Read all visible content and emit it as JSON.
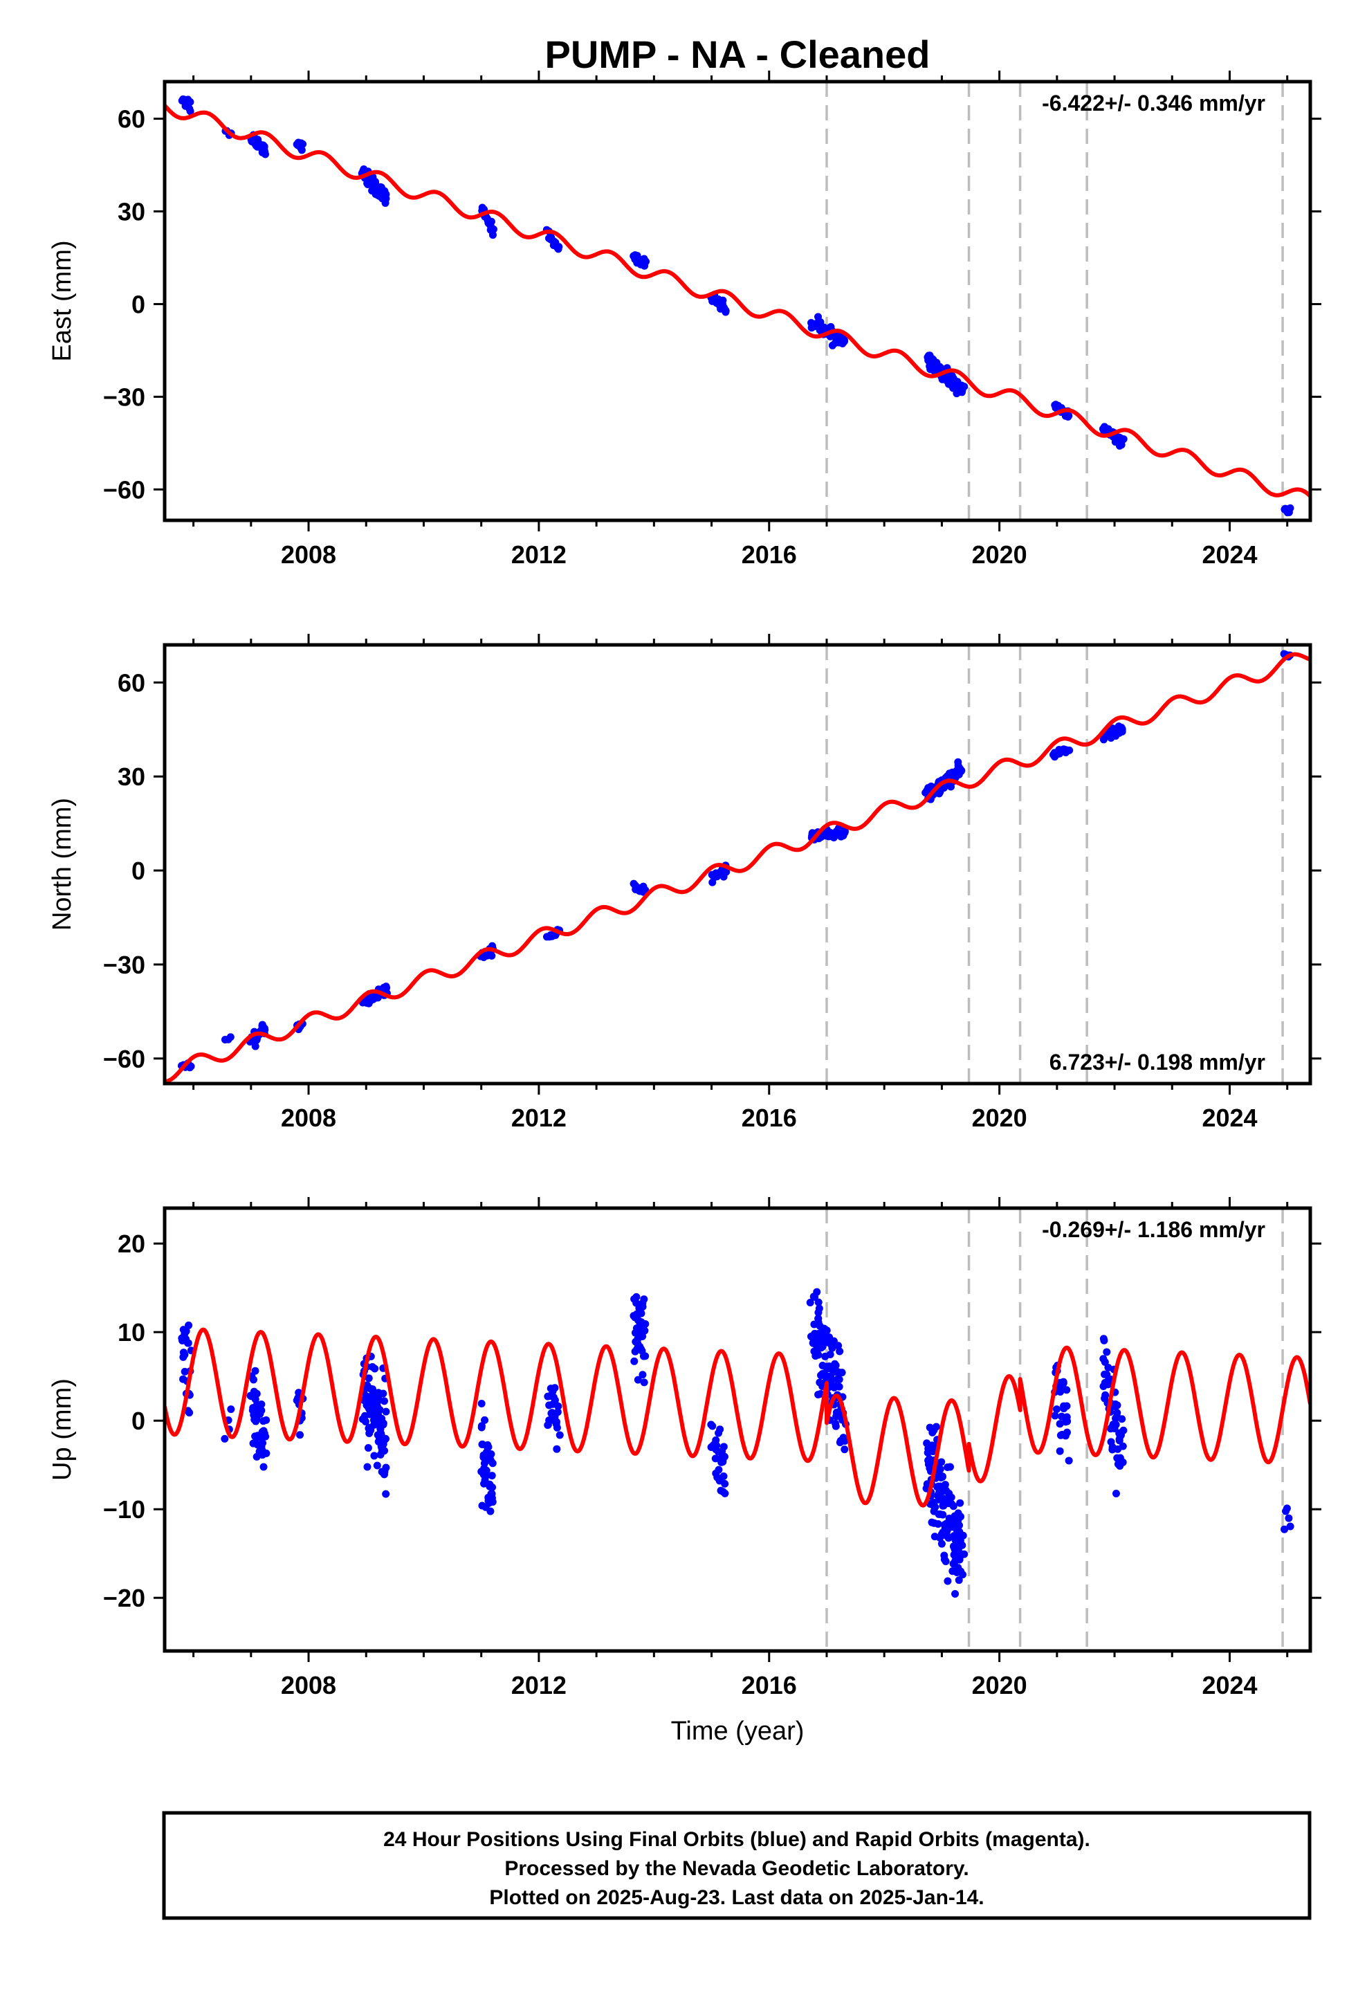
{
  "title": "PUMP  - NA - Cleaned",
  "colors": {
    "final_orbits": "#0000ff",
    "model": "#ff0000",
    "events": "#bdbdbd"
  },
  "footer": {
    "line1": "24 Hour Positions Using Final Orbits (blue) and Rapid Orbits (magenta).",
    "line2": "Processed by the Nevada Geodetic Laboratory.",
    "line3": "Plotted on 2025-Aug-23. Last data on 2025-Jan-14."
  },
  "chart_data": [
    {
      "type": "scatter",
      "name": "east",
      "ylabel": "East (mm)",
      "xlabel": "",
      "xlim": [
        2005.5,
        2025.4
      ],
      "ylim": [
        -70,
        72
      ],
      "xticks": [
        2008,
        2012,
        2016,
        2020,
        2024
      ],
      "yticks": [
        -60,
        -30,
        0,
        30,
        60
      ],
      "yticklabels": [
        "−60",
        "−30",
        "0",
        "30",
        "60"
      ],
      "rate_text": "-6.422+/- 0.346 mm/yr",
      "rate_position": "top-right",
      "event_lines": [
        2017.0,
        2019.47,
        2020.36,
        2021.52,
        2024.92
      ],
      "model": {
        "trend": {
          "slope": -6.422,
          "value_at_2005": 67.5
        },
        "seasonal": [
          {
            "start": 2005.5,
            "end": 2025.4,
            "amplitude": 2.3,
            "period": 1.0,
            "phase": 0.0
          }
        ]
      },
      "clusters": [
        {
          "x_start": 2005.8,
          "x_end": 2005.95,
          "y_start": 67,
          "y_end": 64,
          "spread": 2.5,
          "n": 12
        },
        {
          "x_start": 2006.55,
          "x_end": 2006.65,
          "y_start": 56,
          "y_end": 55,
          "spread": 1.0,
          "n": 4
        },
        {
          "x_start": 2007.0,
          "x_end": 2007.25,
          "y_start": 54,
          "y_end": 50,
          "spread": 2.0,
          "n": 30
        },
        {
          "x_start": 2007.8,
          "x_end": 2007.9,
          "y_start": 52,
          "y_end": 51,
          "spread": 1.2,
          "n": 8
        },
        {
          "x_start": 2008.95,
          "x_end": 2009.35,
          "y_start": 42,
          "y_end": 34,
          "spread": 2.8,
          "n": 60
        },
        {
          "x_start": 2011.0,
          "x_end": 2011.2,
          "y_start": 31,
          "y_end": 24,
          "spread": 2.0,
          "n": 20
        },
        {
          "x_start": 2012.15,
          "x_end": 2012.35,
          "y_start": 23,
          "y_end": 18,
          "spread": 1.5,
          "n": 14
        },
        {
          "x_start": 2013.65,
          "x_end": 2013.85,
          "y_start": 15,
          "y_end": 13,
          "spread": 1.5,
          "n": 18
        },
        {
          "x_start": 2015.0,
          "x_end": 2015.25,
          "y_start": 3,
          "y_end": -2,
          "spread": 2.0,
          "n": 25
        },
        {
          "x_start": 2016.75,
          "x_end": 2017.3,
          "y_start": -6,
          "y_end": -12,
          "spread": 2.0,
          "n": 60
        },
        {
          "x_start": 2018.75,
          "x_end": 2019.35,
          "y_start": -18,
          "y_end": -28,
          "spread": 2.0,
          "n": 90
        },
        {
          "x_start": 2020.95,
          "x_end": 2021.2,
          "y_start": -33,
          "y_end": -36,
          "spread": 1.5,
          "n": 20
        },
        {
          "x_start": 2021.8,
          "x_end": 2022.15,
          "y_start": -40,
          "y_end": -45,
          "spread": 1.5,
          "n": 35
        },
        {
          "x_start": 2024.95,
          "x_end": 2025.05,
          "y_start": -66,
          "y_end": -67,
          "spread": 1.0,
          "n": 5
        }
      ]
    },
    {
      "type": "scatter",
      "name": "north",
      "ylabel": "North (mm)",
      "xlabel": "",
      "xlim": [
        2005.5,
        2025.4
      ],
      "ylim": [
        -68,
        72
      ],
      "xticks": [
        2008,
        2012,
        2016,
        2020,
        2024
      ],
      "yticks": [
        -60,
        -30,
        0,
        30,
        60
      ],
      "yticklabels": [
        "−60",
        "−30",
        "0",
        "30",
        "60"
      ],
      "rate_text": "6.723+/- 0.198 mm/yr",
      "rate_position": "bottom-right",
      "event_lines": [
        2017.0,
        2019.47,
        2020.36,
        2021.52,
        2024.92
      ],
      "model": {
        "trend": {
          "slope": 6.723,
          "value_at_2005": -68.5
        },
        "seasonal": [
          {
            "start": 2005.5,
            "end": 2025.4,
            "amplitude": 2.4,
            "period": 1.0,
            "phase": 1.2
          }
        ]
      },
      "clusters": [
        {
          "x_start": 2005.8,
          "x_end": 2005.95,
          "y_start": -62,
          "y_end": -63,
          "spread": 1.5,
          "n": 8
        },
        {
          "x_start": 2006.55,
          "x_end": 2006.65,
          "y_start": -54,
          "y_end": -54,
          "spread": 0.8,
          "n": 3
        },
        {
          "x_start": 2007.0,
          "x_end": 2007.25,
          "y_start": -55,
          "y_end": -50,
          "spread": 2.0,
          "n": 30
        },
        {
          "x_start": 2007.8,
          "x_end": 2007.9,
          "y_start": -50,
          "y_end": -49,
          "spread": 1.2,
          "n": 8
        },
        {
          "x_start": 2008.95,
          "x_end": 2009.35,
          "y_start": -42,
          "y_end": -38,
          "spread": 2.0,
          "n": 55
        },
        {
          "x_start": 2011.0,
          "x_end": 2011.2,
          "y_start": -28,
          "y_end": -25,
          "spread": 1.5,
          "n": 20
        },
        {
          "x_start": 2012.15,
          "x_end": 2012.35,
          "y_start": -22,
          "y_end": -19,
          "spread": 1.2,
          "n": 14
        },
        {
          "x_start": 2013.65,
          "x_end": 2013.85,
          "y_start": -5,
          "y_end": -7,
          "spread": 1.2,
          "n": 18
        },
        {
          "x_start": 2015.0,
          "x_end": 2015.25,
          "y_start": -2,
          "y_end": 0,
          "spread": 1.5,
          "n": 22
        },
        {
          "x_start": 2016.75,
          "x_end": 2017.3,
          "y_start": 11,
          "y_end": 12,
          "spread": 1.5,
          "n": 55
        },
        {
          "x_start": 2018.75,
          "x_end": 2019.35,
          "y_start": 24,
          "y_end": 32,
          "spread": 2.2,
          "n": 90
        },
        {
          "x_start": 2020.95,
          "x_end": 2021.2,
          "y_start": 37,
          "y_end": 39,
          "spread": 1.2,
          "n": 20
        },
        {
          "x_start": 2021.8,
          "x_end": 2022.15,
          "y_start": 43,
          "y_end": 45,
          "spread": 1.5,
          "n": 35
        },
        {
          "x_start": 2024.95,
          "x_end": 2025.05,
          "y_start": 69,
          "y_end": 68,
          "spread": 1.0,
          "n": 5
        }
      ]
    },
    {
      "type": "scatter",
      "name": "up",
      "ylabel": "Up (mm)",
      "xlabel": "Time (year)",
      "xlim": [
        2005.5,
        2025.4
      ],
      "ylim": [
        -26,
        24
      ],
      "xticks": [
        2008,
        2012,
        2016,
        2020,
        2024
      ],
      "yticks": [
        -20,
        -10,
        0,
        10,
        20
      ],
      "yticklabels": [
        "−20",
        "−10",
        "0",
        "10",
        "20"
      ],
      "rate_text": "-0.269+/- 1.186 mm/yr",
      "rate_position": "top-right",
      "event_lines": [
        2017.0,
        2019.47,
        2020.36,
        2021.52,
        2024.92
      ],
      "model": {
        "trend": {
          "slope": -0.269,
          "value_at_2005": 4.6
        },
        "seasonal": [
          {
            "start": 2005.5,
            "end": 2017.0,
            "amplitude": 6.0,
            "period": 1.0,
            "phase": 0.5,
            "offset": 0
          },
          {
            "start": 2017.0,
            "end": 2019.47,
            "amplitude": 6.0,
            "period": 1.0,
            "phase": 0.5,
            "offset": -4.5
          },
          {
            "start": 2019.47,
            "end": 2020.36,
            "amplitude": 6.0,
            "period": 1.0,
            "phase": 0.5,
            "offset": -1.5
          },
          {
            "start": 2020.36,
            "end": 2025.4,
            "amplitude": 6.0,
            "period": 1.0,
            "phase": 0.5,
            "offset": 2.0
          }
        ]
      },
      "clusters": [
        {
          "x_start": 2005.8,
          "x_end": 2005.95,
          "y_start": 8,
          "y_end": 6,
          "spread": 6.0,
          "n": 22
        },
        {
          "x_start": 2006.55,
          "x_end": 2006.65,
          "y_start": -1,
          "y_end": -1,
          "spread": 2.0,
          "n": 5
        },
        {
          "x_start": 2007.0,
          "x_end": 2007.25,
          "y_start": 2,
          "y_end": -2,
          "spread": 6.0,
          "n": 45
        },
        {
          "x_start": 2007.8,
          "x_end": 2007.9,
          "y_start": 2,
          "y_end": 0,
          "spread": 3.5,
          "n": 10
        },
        {
          "x_start": 2008.95,
          "x_end": 2009.35,
          "y_start": 4,
          "y_end": -2,
          "spread": 6.5,
          "n": 90
        },
        {
          "x_start": 2011.0,
          "x_end": 2011.2,
          "y_start": -3,
          "y_end": -8,
          "spread": 5.5,
          "n": 45
        },
        {
          "x_start": 2012.15,
          "x_end": 2012.35,
          "y_start": 2,
          "y_end": -2,
          "spread": 5.0,
          "n": 25
        },
        {
          "x_start": 2013.65,
          "x_end": 2013.85,
          "y_start": 10,
          "y_end": 8,
          "spread": 5.5,
          "n": 40
        },
        {
          "x_start": 2015.0,
          "x_end": 2015.25,
          "y_start": -2,
          "y_end": -6,
          "spread": 4.5,
          "n": 30
        },
        {
          "x_start": 2016.75,
          "x_end": 2017.3,
          "y_start": 11,
          "y_end": 0,
          "spread": 6.0,
          "n": 110
        },
        {
          "x_start": 2018.75,
          "x_end": 2019.35,
          "y_start": -4,
          "y_end": -16,
          "spread": 6.0,
          "n": 150
        },
        {
          "x_start": 2020.95,
          "x_end": 2021.2,
          "y_start": 3,
          "y_end": 0,
          "spread": 4.5,
          "n": 30
        },
        {
          "x_start": 2021.8,
          "x_end": 2022.15,
          "y_start": 6,
          "y_end": -4,
          "spread": 5.5,
          "n": 55
        },
        {
          "x_start": 2024.95,
          "x_end": 2025.05,
          "y_start": -10,
          "y_end": -11,
          "spread": 2.5,
          "n": 5
        }
      ]
    }
  ]
}
